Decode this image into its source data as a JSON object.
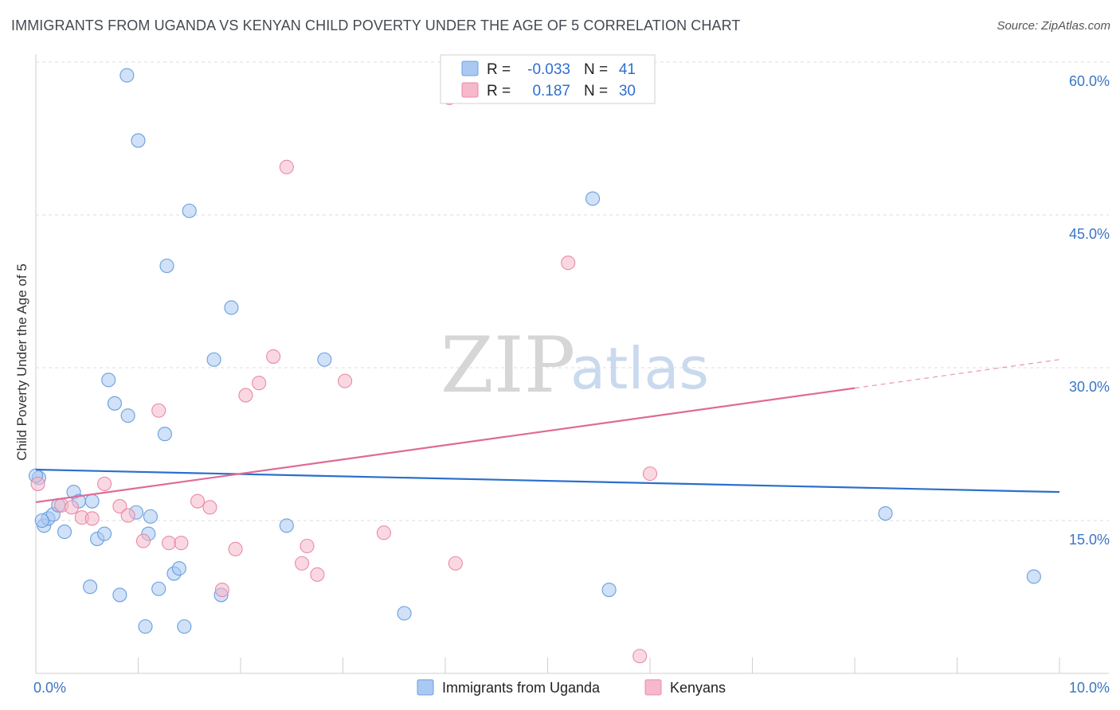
{
  "header": {
    "title": "IMMIGRANTS FROM UGANDA VS KENYAN CHILD POVERTY UNDER THE AGE OF 5 CORRELATION CHART",
    "source": "Source: ZipAtlas.com"
  },
  "watermark": {
    "zip": "ZIP",
    "atlas": "atlas"
  },
  "legend": {
    "rows": [
      {
        "r_label": "R =",
        "r_value": "-0.033",
        "n_label": "N =",
        "n_value": "41",
        "color": "#a9c9f2"
      },
      {
        "r_label": "R =",
        "r_value": "0.187",
        "n_label": "N =",
        "n_value": "30",
        "color": "#f6b8cb"
      }
    ]
  },
  "bottom_legend": [
    {
      "label": "Immigrants from Uganda",
      "color": "#a9c9f2"
    },
    {
      "label": "Kenyans",
      "color": "#f6b8cb"
    }
  ],
  "chart_data": {
    "type": "scatter",
    "ylabel": "Child Poverty Under the Age of 5",
    "xlim": [
      0,
      10
    ],
    "ylim": [
      0,
      60
    ],
    "x_tick_labels": [
      "0.0%",
      "10.0%"
    ],
    "y_ticks": [
      15,
      30,
      45,
      60
    ],
    "y_tick_labels": [
      "15.0%",
      "30.0%",
      "45.0%",
      "60.0%"
    ],
    "grid": true,
    "series": [
      {
        "name": "Immigrants from Uganda",
        "color": "#a9c9f2",
        "stroke": "#6a9fdc",
        "trend_color": "#2a6fcc",
        "trend": {
          "x0": 0,
          "y0": 20.0,
          "x1": 10,
          "y1": 17.8,
          "dash_from": 10
        },
        "points": [
          [
            0.03,
            19.2
          ],
          [
            0.08,
            14.5
          ],
          [
            0.12,
            15.2
          ],
          [
            0.17,
            15.6
          ],
          [
            0.22,
            16.5
          ],
          [
            0.28,
            13.9
          ],
          [
            0.37,
            17.8
          ],
          [
            0.42,
            16.9
          ],
          [
            0.55,
            16.9
          ],
          [
            0.6,
            13.2
          ],
          [
            0.53,
            8.5
          ],
          [
            0.67,
            13.7
          ],
          [
            0.71,
            28.8
          ],
          [
            0.77,
            26.5
          ],
          [
            0.82,
            7.7
          ],
          [
            0.89,
            58.7
          ],
          [
            0.9,
            25.3
          ],
          [
            0.98,
            15.8
          ],
          [
            1.0,
            52.3
          ],
          [
            1.07,
            4.6
          ],
          [
            1.1,
            13.7
          ],
          [
            1.12,
            15.4
          ],
          [
            1.2,
            8.3
          ],
          [
            1.26,
            23.5
          ],
          [
            1.28,
            40.0
          ],
          [
            1.35,
            9.8
          ],
          [
            1.4,
            10.3
          ],
          [
            1.45,
            4.6
          ],
          [
            1.5,
            45.4
          ],
          [
            1.74,
            30.8
          ],
          [
            1.81,
            7.7
          ],
          [
            1.91,
            35.9
          ],
          [
            2.45,
            14.5
          ],
          [
            2.82,
            30.8
          ],
          [
            3.6,
            5.9
          ],
          [
            5.44,
            46.6
          ],
          [
            5.6,
            8.2
          ],
          [
            8.3,
            15.7
          ],
          [
            9.75,
            9.5
          ],
          [
            0.0,
            19.4
          ],
          [
            0.06,
            15.0
          ]
        ]
      },
      {
        "name": "Kenyans",
        "color": "#f6b8cb",
        "stroke": "#e98aa8",
        "trend_color": "#e06a94",
        "trend": {
          "x0": 0,
          "y0": 16.8,
          "x1": 10,
          "y1": 30.8,
          "dash_from": 8.0
        },
        "points": [
          [
            0.02,
            18.6
          ],
          [
            0.25,
            16.5
          ],
          [
            0.35,
            16.3
          ],
          [
            0.45,
            15.3
          ],
          [
            0.55,
            15.2
          ],
          [
            0.67,
            18.6
          ],
          [
            0.82,
            16.4
          ],
          [
            0.9,
            15.5
          ],
          [
            1.05,
            13.0
          ],
          [
            1.2,
            25.8
          ],
          [
            1.3,
            12.8
          ],
          [
            1.42,
            12.8
          ],
          [
            1.58,
            16.9
          ],
          [
            1.7,
            16.3
          ],
          [
            1.82,
            8.2
          ],
          [
            1.95,
            12.2
          ],
          [
            2.05,
            27.3
          ],
          [
            2.18,
            28.5
          ],
          [
            2.32,
            31.1
          ],
          [
            2.45,
            49.7
          ],
          [
            2.6,
            10.8
          ],
          [
            2.65,
            12.5
          ],
          [
            2.75,
            9.7
          ],
          [
            3.02,
            28.7
          ],
          [
            3.4,
            13.8
          ],
          [
            4.1,
            10.8
          ],
          [
            4.04,
            56.5
          ],
          [
            5.2,
            40.3
          ],
          [
            5.9,
            1.7
          ],
          [
            6.0,
            19.6
          ]
        ]
      }
    ]
  }
}
